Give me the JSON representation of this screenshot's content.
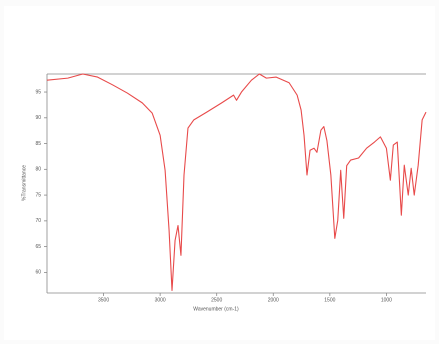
{
  "chart_data": {
    "type": "line",
    "x_label": "Wavenumber (cm-1)",
    "y_label": "%Transmittance",
    "xlim": [
      4000,
      650
    ],
    "xticks": [
      3500,
      3000,
      2500,
      2000,
      1500,
      1000
    ],
    "ylim": [
      56,
      98.5
    ],
    "yticks": [
      95,
      90,
      85,
      80,
      75,
      70,
      65,
      60
    ],
    "series": [
      {
        "color": "#e84a4a",
        "x": [
          4000,
          3816,
          3684,
          3553,
          3421,
          3290,
          3158,
          3070,
          3000,
          2956,
          2921,
          2895,
          2868,
          2842,
          2816,
          2789,
          2754,
          2702,
          2588,
          2456,
          2351,
          2325,
          2281,
          2193,
          2123,
          2061,
          1974,
          1860,
          1789,
          1754,
          1728,
          1702,
          1675,
          1640,
          1614,
          1579,
          1553,
          1526,
          1491,
          1456,
          1430,
          1404,
          1377,
          1351,
          1316,
          1246,
          1175,
          1105,
          1053,
          1000,
          965,
          939,
          904,
          868,
          842,
          807,
          781,
          754,
          719,
          684,
          650
        ],
        "values": [
          97.3,
          97.7,
          98.5,
          97.9,
          96.4,
          94.8,
          92.9,
          90.9,
          86.6,
          79.8,
          68.2,
          56.5,
          66.2,
          69.1,
          63.3,
          78.9,
          88.0,
          89.6,
          91.1,
          92.9,
          94.4,
          93.4,
          95,
          97.3,
          98.5,
          97.7,
          97.9,
          96.8,
          94.4,
          91.5,
          86.6,
          78.9,
          83.7,
          84.1,
          83.3,
          87.6,
          88.3,
          85.6,
          78.9,
          66.6,
          70.1,
          79.8,
          70.5,
          80.7,
          81.8,
          82.2,
          84.1,
          85.3,
          86.3,
          84.1,
          77.9,
          84.7,
          85.3,
          71.1,
          80.8,
          75.0,
          80.2,
          75.0,
          80.8,
          89.6,
          91.1
        ]
      }
    ]
  }
}
